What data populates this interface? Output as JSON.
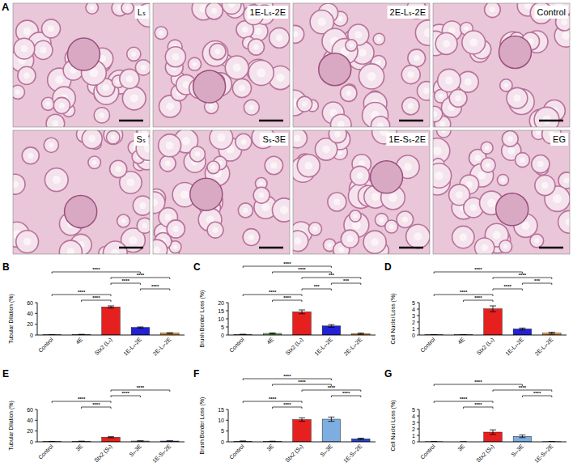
{
  "panel_a": {
    "letter": "A",
    "images": [
      {
        "label": "Lₛ"
      },
      {
        "label": "1E-Lₛ-2E"
      },
      {
        "label": "2E-Lₛ-2E"
      },
      {
        "label": "Control"
      },
      {
        "label": "Sₛ"
      },
      {
        "label": "Sₛ-3E"
      },
      {
        "label": "1E-Sₛ-2E"
      },
      {
        "label": "EG"
      }
    ]
  },
  "chart_data": [
    {
      "type": "bar",
      "panel_label": "B",
      "y_label": "Tubular Dilation (%)",
      "categories": [
        "Control",
        "4E",
        "Stx2 (Lₛ)",
        "1E-Lₛ-2E",
        "2E-Lₛ-2E"
      ],
      "values": [
        0.3,
        1,
        52,
        14,
        3.5
      ],
      "errors": [
        0.1,
        0.3,
        2,
        1,
        0.8
      ],
      "colors": [
        "#9e9e9e",
        "#7cc46a",
        "#e5201f",
        "#2222d4",
        "#f4922a"
      ],
      "ylim": [
        0,
        60
      ],
      "yticks": [
        0,
        20,
        40,
        60
      ],
      "comparisons": [
        {
          "pair": [
            1,
            2
          ],
          "label": "****"
        },
        {
          "pair": [
            0,
            2
          ],
          "label": "****"
        },
        {
          "pair": [
            3,
            4
          ],
          "label": "****"
        },
        {
          "pair": [
            2,
            3
          ],
          "label": "****"
        },
        {
          "pair": [
            2,
            4
          ],
          "label": "****"
        },
        {
          "pair": [
            0,
            3
          ],
          "label": "****"
        }
      ]
    },
    {
      "type": "bar",
      "panel_label": "C",
      "y_label": "Brush Border Loss (%)",
      "categories": [
        "Control",
        "4E",
        "Stx2 (Lₛ)",
        "1E-Lₛ-2E",
        "2E-Lₛ-2E"
      ],
      "values": [
        0.3,
        1,
        14.3,
        5.6,
        0.8
      ],
      "errors": [
        0.2,
        0.3,
        1.2,
        0.8,
        0.4
      ],
      "colors": [
        "#9e9e9e",
        "#7cc46a",
        "#e5201f",
        "#2222d4",
        "#f4922a"
      ],
      "ylim": [
        0,
        20
      ],
      "yticks": [
        0,
        5,
        10,
        15,
        20
      ],
      "comparisons": [
        {
          "pair": [
            1,
            2
          ],
          "label": "****"
        },
        {
          "pair": [
            0,
            2
          ],
          "label": "****"
        },
        {
          "pair": [
            2,
            3
          ],
          "label": "***"
        },
        {
          "pair": [
            3,
            4
          ],
          "label": "***"
        },
        {
          "pair": [
            2,
            4
          ],
          "label": "***"
        },
        {
          "pair": [
            1,
            3
          ],
          "label": "****"
        },
        {
          "pair": [
            0,
            3
          ],
          "label": "****"
        }
      ]
    },
    {
      "type": "bar",
      "panel_label": "D",
      "y_label": "Cell Nuclei Loss (%)",
      "categories": [
        "Control",
        "4E",
        "Stx2 (Lₛ)",
        "1E-Lₛ-2E",
        "2E-Lₛ-2E"
      ],
      "values": [
        0.03,
        0.03,
        4.05,
        0.93,
        0.28
      ],
      "errors": [
        0.02,
        0.02,
        0.45,
        0.15,
        0.15
      ],
      "colors": [
        "#9e9e9e",
        "#7cc46a",
        "#e5201f",
        "#2222d4",
        "#f4922a"
      ],
      "ylim": [
        0,
        5
      ],
      "yticks": [
        0,
        1,
        2,
        3,
        4,
        5
      ],
      "comparisons": [
        {
          "pair": [
            1,
            2
          ],
          "label": "****"
        },
        {
          "pair": [
            0,
            2
          ],
          "label": "****"
        },
        {
          "pair": [
            2,
            3
          ],
          "label": "****"
        },
        {
          "pair": [
            3,
            4
          ],
          "label": "***"
        },
        {
          "pair": [
            2,
            4
          ],
          "label": "****"
        },
        {
          "pair": [
            0,
            3
          ],
          "label": "****"
        }
      ]
    },
    {
      "type": "bar",
      "panel_label": "E",
      "y_label": "Tubular Dilation (%)",
      "categories": [
        "Control",
        "3E",
        "Stx2 (Sₛ)",
        "Sₛ-3E",
        "1E-Sₛ-2E"
      ],
      "values": [
        0.3,
        1,
        8.5,
        1.5,
        1.5
      ],
      "errors": [
        0.1,
        0.3,
        1,
        0.3,
        0.3
      ],
      "colors": [
        "#9e9e9e",
        "#7cc46a",
        "#e5201f",
        "#7eaee0",
        "#2244d4"
      ],
      "ylim": [
        0,
        60
      ],
      "yticks": [
        0,
        20,
        40,
        60
      ],
      "comparisons": [
        {
          "pair": [
            1,
            2
          ],
          "label": "****"
        },
        {
          "pair": [
            0,
            2
          ],
          "label": "****"
        },
        {
          "pair": [
            2,
            3
          ],
          "label": "****"
        },
        {
          "pair": [
            2,
            4
          ],
          "label": "****"
        }
      ]
    },
    {
      "type": "bar",
      "panel_label": "F",
      "y_label": "Brush Border Loss (%)",
      "categories": [
        "Control",
        "3E",
        "Stx2 (Sₛ)",
        "Sₛ-3E",
        "1E-Sₛ-2E"
      ],
      "values": [
        0.3,
        0.2,
        10.3,
        10.5,
        1.4
      ],
      "errors": [
        0.1,
        0.1,
        0.8,
        1,
        0.3
      ],
      "colors": [
        "#9e9e9e",
        "#7cc46a",
        "#e5201f",
        "#7eaee0",
        "#2244d4"
      ],
      "ylim": [
        0,
        15
      ],
      "yticks": [
        0,
        5,
        10,
        15
      ],
      "comparisons": [
        {
          "pair": [
            1,
            2
          ],
          "label": "****"
        },
        {
          "pair": [
            0,
            2
          ],
          "label": "****"
        },
        {
          "pair": [
            3,
            4
          ],
          "label": "****"
        },
        {
          "pair": [
            2,
            4
          ],
          "label": "****"
        },
        {
          "pair": [
            1,
            3
          ],
          "label": "****"
        },
        {
          "pair": [
            0,
            3
          ],
          "label": "****"
        }
      ]
    },
    {
      "type": "bar",
      "panel_label": "G",
      "y_label": "Cell Nuclei Loss (%)",
      "categories": [
        "Control",
        "3E",
        "Stx2 (Sₛ)",
        "Sₛ-3E",
        "1E-Sₛ-2E"
      ],
      "values": [
        0.02,
        0,
        1.5,
        0.85,
        0.02
      ],
      "errors": [
        0.01,
        0,
        0.35,
        0.2,
        0.01
      ],
      "colors": [
        "#9e9e9e",
        "#7cc46a",
        "#e5201f",
        "#7eaee0",
        "#2244d4"
      ],
      "ylim": [
        0,
        5
      ],
      "yticks": [
        0,
        1,
        2,
        3,
        4,
        5
      ],
      "comparisons": [
        {
          "pair": [
            1,
            2
          ],
          "label": "****"
        },
        {
          "pair": [
            0,
            2
          ],
          "label": "****"
        },
        {
          "pair": [
            3,
            4
          ],
          "label": "****"
        },
        {
          "pair": [
            2,
            4
          ],
          "label": "****"
        },
        {
          "pair": [
            0,
            3
          ],
          "label": "****"
        }
      ]
    }
  ]
}
